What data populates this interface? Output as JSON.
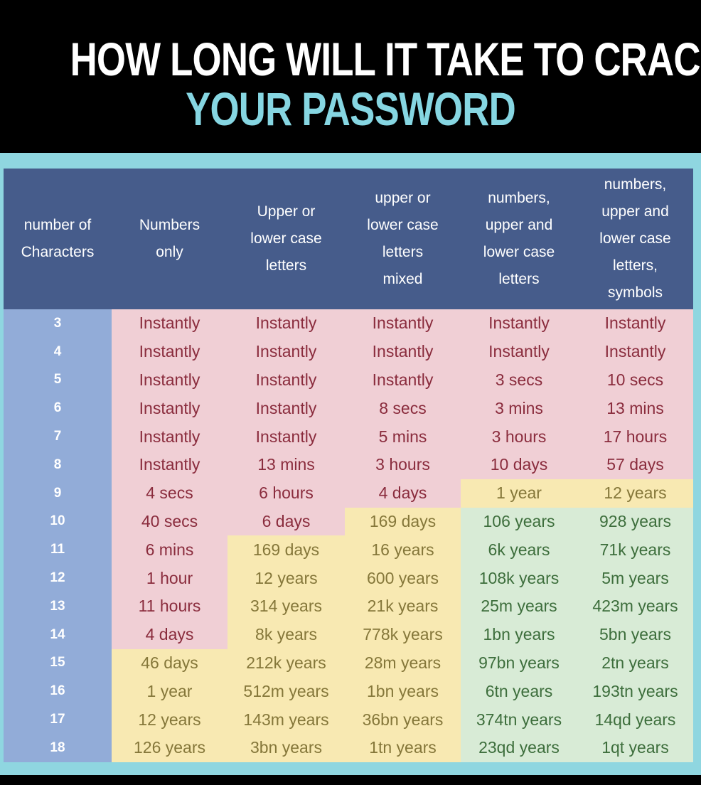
{
  "title": {
    "line1": "HOW LONG WILL IT TAKE TO CRACK",
    "line2": "YOUR PASSWORD"
  },
  "colors": {
    "header": "#465c8b",
    "instant": "#f0cfd5",
    "medium": "#f8e9b2",
    "strong": "#d8ebd6",
    "frame": "#8fd6e0"
  },
  "headers": [
    [
      "number of",
      "Characters"
    ],
    [
      "Numbers",
      "only"
    ],
    [
      "Upper or",
      "lower case",
      "letters"
    ],
    [
      "upper or",
      "lower case",
      "letters",
      "mixed"
    ],
    [
      "numbers,",
      "upper and",
      "lower case",
      "letters"
    ],
    [
      "numbers,",
      "upper and",
      "lower case",
      "letters,",
      "symbols"
    ]
  ],
  "rows": [
    {
      "chars": "3",
      "values": [
        "Instantly",
        "Instantly",
        "Instantly",
        "Instantly",
        "Instantly"
      ],
      "tiers": [
        "pink",
        "pink",
        "pink",
        "pink",
        "pink"
      ]
    },
    {
      "chars": "4",
      "values": [
        "Instantly",
        "Instantly",
        "Instantly",
        "Instantly",
        "Instantly"
      ],
      "tiers": [
        "pink",
        "pink",
        "pink",
        "pink",
        "pink"
      ]
    },
    {
      "chars": "5",
      "values": [
        "Instantly",
        "Instantly",
        "Instantly",
        "3 secs",
        "10 secs"
      ],
      "tiers": [
        "pink",
        "pink",
        "pink",
        "pink",
        "pink"
      ]
    },
    {
      "chars": "6",
      "values": [
        "Instantly",
        "Instantly",
        "8 secs",
        "3 mins",
        "13 mins"
      ],
      "tiers": [
        "pink",
        "pink",
        "pink",
        "pink",
        "pink"
      ]
    },
    {
      "chars": "7",
      "values": [
        "Instantly",
        "Instantly",
        "5 mins",
        "3 hours",
        "17 hours"
      ],
      "tiers": [
        "pink",
        "pink",
        "pink",
        "pink",
        "pink"
      ]
    },
    {
      "chars": "8",
      "values": [
        "Instantly",
        "13 mins",
        "3 hours",
        "10 days",
        "57 days"
      ],
      "tiers": [
        "pink",
        "pink",
        "pink",
        "pink",
        "pink"
      ]
    },
    {
      "chars": "9",
      "values": [
        "4 secs",
        "6 hours",
        "4 days",
        "1 year",
        "12 years"
      ],
      "tiers": [
        "pink",
        "pink",
        "pink",
        "yellow",
        "yellow"
      ]
    },
    {
      "chars": "10",
      "values": [
        "40 secs",
        "6 days",
        "169 days",
        "106 years",
        "928 years"
      ],
      "tiers": [
        "pink",
        "pink",
        "yellow",
        "green",
        "green"
      ]
    },
    {
      "chars": "11",
      "values": [
        "6 mins",
        "169 days",
        "16 years",
        "6k years",
        "71k years"
      ],
      "tiers": [
        "pink",
        "yellow",
        "yellow",
        "green",
        "green"
      ]
    },
    {
      "chars": "12",
      "values": [
        "1 hour",
        "12 years",
        "600 years",
        "108k years",
        "5m years"
      ],
      "tiers": [
        "pink",
        "yellow",
        "yellow",
        "green",
        "green"
      ]
    },
    {
      "chars": "13",
      "values": [
        "11 hours",
        "314 years",
        "21k years",
        "25m years",
        "423m years"
      ],
      "tiers": [
        "pink",
        "yellow",
        "yellow",
        "green",
        "green"
      ]
    },
    {
      "chars": "14",
      "values": [
        "4 days",
        "8k years",
        "778k years",
        "1bn years",
        "5bn years"
      ],
      "tiers": [
        "pink",
        "yellow",
        "yellow",
        "green",
        "green"
      ]
    },
    {
      "chars": "15",
      "values": [
        "46 days",
        "212k years",
        "28m years",
        "97bn years",
        "2tn years"
      ],
      "tiers": [
        "yellow",
        "yellow",
        "yellow",
        "green",
        "green"
      ]
    },
    {
      "chars": "16",
      "values": [
        "1 year",
        "512m years",
        "1bn years",
        "6tn years",
        "193tn years"
      ],
      "tiers": [
        "yellow",
        "yellow",
        "yellow",
        "green",
        "green"
      ]
    },
    {
      "chars": "17",
      "values": [
        "12 years",
        "143m years",
        "36bn years",
        "374tn years",
        "14qd years"
      ],
      "tiers": [
        "yellow",
        "yellow",
        "yellow",
        "green",
        "green"
      ]
    },
    {
      "chars": "18",
      "values": [
        "126 years",
        "3bn years",
        "1tn years",
        "23qd years",
        "1qt years"
      ],
      "tiers": [
        "yellow",
        "yellow",
        "yellow",
        "green",
        "green"
      ]
    }
  ]
}
